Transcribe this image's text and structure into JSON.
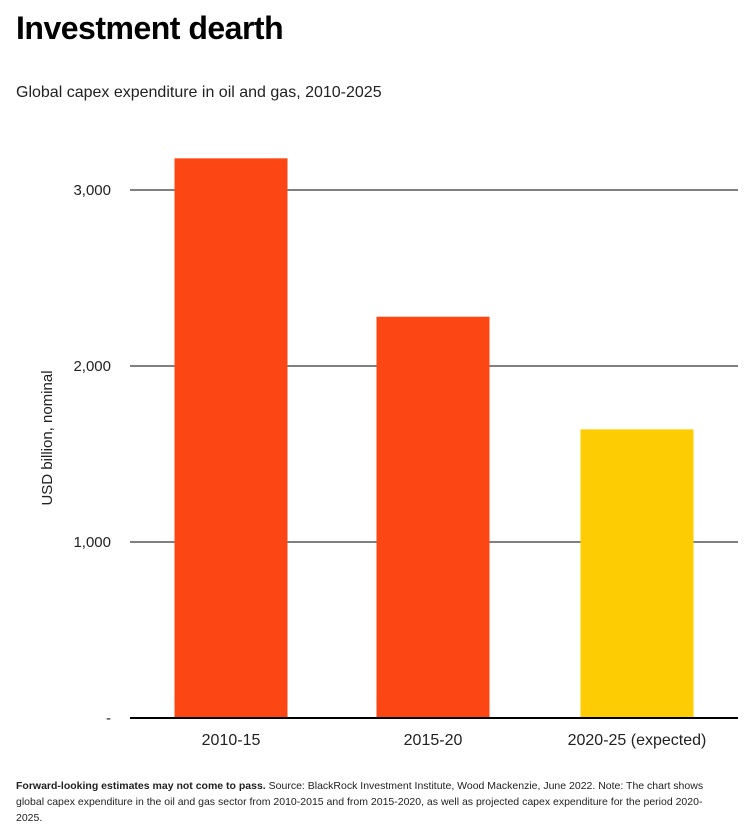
{
  "title": "Investment dearth",
  "subtitle": "Global capex expenditure in oil and gas, 2010-2025",
  "footnote": {
    "bold": "Forward-looking estimates may not come to pass.",
    "text": " Source: BlackRock Investment Institute, Wood Mackenzie, June 2022. Note: The chart shows global capex expenditure in the oil and gas sector from 2010-2015 and from 2015-2020, as well as projected capex expenditure for the period 2020-2025."
  },
  "colors": {
    "actual": "#fc4714",
    "expected": "#fecc02",
    "grid": "#000000"
  },
  "chart_data": {
    "type": "bar",
    "title": "Global capex expenditure in oil and gas, 2010-2025",
    "xlabel": "",
    "ylabel": "USD billion, nominal",
    "categories": [
      "2010-15",
      "2015-20",
      "2020-25 (expected)"
    ],
    "values": [
      3180,
      2280,
      1640
    ],
    "bar_colors": [
      "#fc4714",
      "#fc4714",
      "#fecc02"
    ],
    "ylim": [
      0,
      3000
    ],
    "yticks": [
      0,
      1000,
      2000,
      3000
    ],
    "ytick_labels": [
      "-",
      "1,000",
      "2,000",
      "3,000"
    ],
    "grid": true,
    "legend": "none"
  }
}
